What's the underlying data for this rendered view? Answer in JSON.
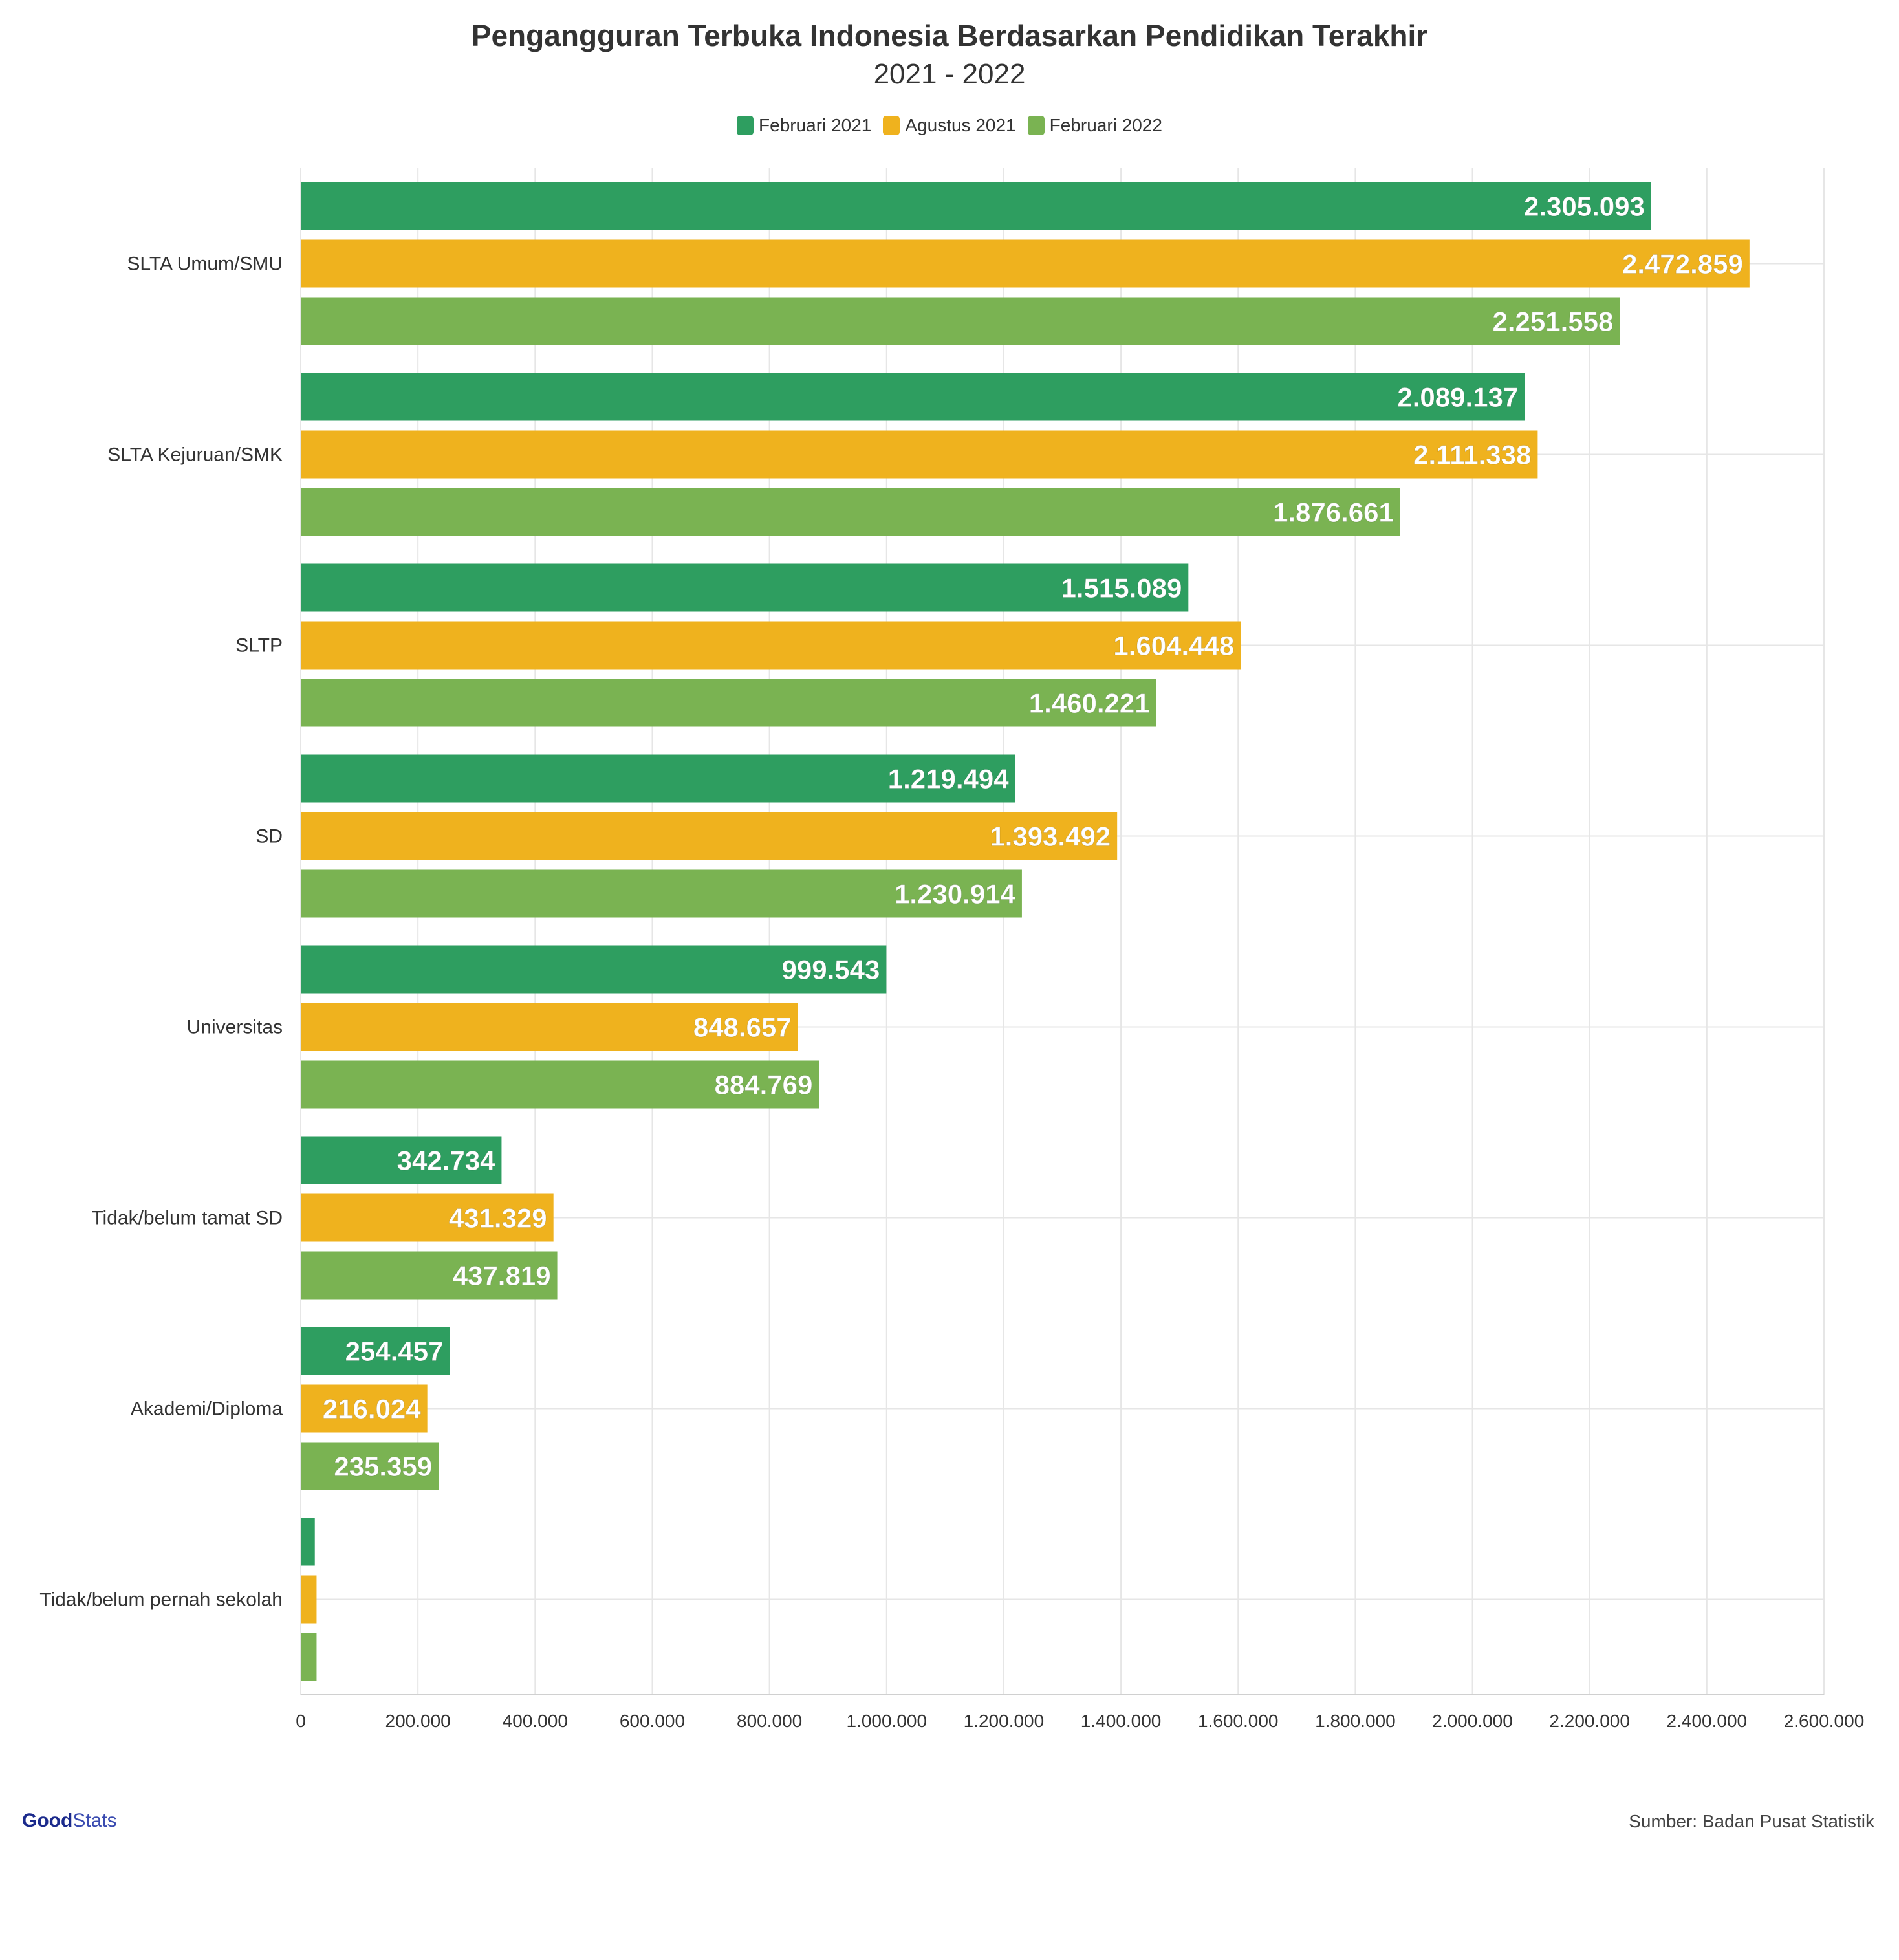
{
  "title": "Pengangguran Terbuka Indonesia Berdasarkan Pendidikan Terakhir",
  "subtitle": "2021 - 2022",
  "legend": [
    {
      "label": "Februari 2021",
      "color": "#2e9e60"
    },
    {
      "label": "Agustus 2021",
      "color": "#efb21e"
    },
    {
      "label": "Februari 2022",
      "color": "#7ab352"
    }
  ],
  "source": "Sumber: Badan Pusat Statistik",
  "logo": {
    "part1": "Good",
    "part2": "Stats"
  },
  "chart_data": {
    "type": "bar",
    "orientation": "horizontal",
    "categories": [
      "SLTA Umum/SMU",
      "SLTA Kejuruan/SMK",
      "SLTP",
      "SD",
      "Universitas",
      "Tidak/belum tamat SD",
      "Akademi/Diploma",
      "Tidak/belum pernah sekolah"
    ],
    "series": [
      {
        "name": "Februari 2021",
        "color": "#2e9e60",
        "values": [
          2305093,
          2089137,
          1515089,
          1219494,
          999543,
          342734,
          254457,
          24000
        ],
        "labels": [
          "2.305.093",
          "2.089.137",
          "1.515.089",
          "1.219.494",
          "999.543",
          "342.734",
          "254.457",
          ""
        ]
      },
      {
        "name": "Agustus 2021",
        "color": "#efb21e",
        "values": [
          2472859,
          2111338,
          1604448,
          1393492,
          848657,
          431329,
          216024,
          27000
        ],
        "labels": [
          "2.472.859",
          "2.111.338",
          "1.604.448",
          "1.393.492",
          "848.657",
          "431.329",
          "216.024",
          ""
        ]
      },
      {
        "name": "Februari 2022",
        "color": "#7ab352",
        "values": [
          2251558,
          1876661,
          1460221,
          1230914,
          884769,
          437819,
          235359,
          27000
        ],
        "labels": [
          "2.251.558",
          "1.876.661",
          "1.460.221",
          "1.230.914",
          "884.769",
          "437.819",
          "235.359",
          ""
        ]
      }
    ],
    "xlim": [
      0,
      2600000
    ],
    "xticks": [
      {
        "value": 0,
        "label": "0"
      },
      {
        "value": 200000,
        "label": "200.000"
      },
      {
        "value": 400000,
        "label": "400.000"
      },
      {
        "value": 600000,
        "label": "600.000"
      },
      {
        "value": 800000,
        "label": "800.000"
      },
      {
        "value": 1000000,
        "label": "1.000.000"
      },
      {
        "value": 1200000,
        "label": "1.200.000"
      },
      {
        "value": 1400000,
        "label": "1.400.000"
      },
      {
        "value": 1600000,
        "label": "1.600.000"
      },
      {
        "value": 1800000,
        "label": "1.800.000"
      },
      {
        "value": 2000000,
        "label": "2.000.000"
      },
      {
        "value": 2200000,
        "label": "2.200.000"
      },
      {
        "value": 2400000,
        "label": "2.400.000"
      },
      {
        "value": 2600000,
        "label": "2.600.000"
      }
    ],
    "grid": true,
    "legend_position": "top-center"
  }
}
